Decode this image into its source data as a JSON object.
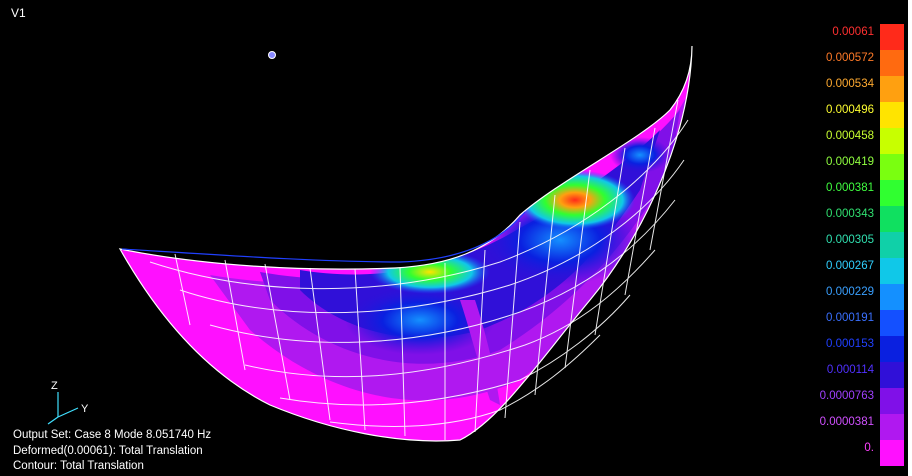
{
  "viewport": {
    "title": "V1"
  },
  "legend": {
    "entries": [
      {
        "label": "0.00061",
        "color": "#ff2a1a",
        "label_color": "#ff3030"
      },
      {
        "label": "0.000572",
        "color": "#ff6a10",
        "label_color": "#ff7a28"
      },
      {
        "label": "0.000534",
        "color": "#ffa010",
        "label_color": "#ffaa30"
      },
      {
        "label": "0.000496",
        "color": "#ffe400",
        "label_color": "#ffff30"
      },
      {
        "label": "0.000458",
        "color": "#c8ff00",
        "label_color": "#c8ff30"
      },
      {
        "label": "0.000419",
        "color": "#7aff10",
        "label_color": "#90ff40"
      },
      {
        "label": "0.000381",
        "color": "#30ff30",
        "label_color": "#40ff40"
      },
      {
        "label": "0.000343",
        "color": "#10e060",
        "label_color": "#30e070"
      },
      {
        "label": "0.000305",
        "color": "#10d0a8",
        "label_color": "#30e0b0"
      },
      {
        "label": "0.000267",
        "color": "#10c8e8",
        "label_color": "#30d0ff"
      },
      {
        "label": "0.000229",
        "color": "#1490ff",
        "label_color": "#3aa0ff"
      },
      {
        "label": "0.000191",
        "color": "#1450ff",
        "label_color": "#3a70ff"
      },
      {
        "label": "0.000153",
        "color": "#0a20e0",
        "label_color": "#2040ff"
      },
      {
        "label": "0.000114",
        "color": "#3010d8",
        "label_color": "#5030ff"
      },
      {
        "label": "0.0000763",
        "color": "#8010e8",
        "label_color": "#a040ff"
      },
      {
        "label": "0.0000381",
        "color": "#b018f0",
        "label_color": "#d050ff"
      },
      {
        "label": "0.",
        "color": "#ff10ff",
        "label_color": "#ff40ff"
      }
    ]
  },
  "status": {
    "output_set": "Output Set: Case 8 Mode 8.051740 Hz",
    "deformed": "Deformed(0.00061): Total Translation",
    "contour": "Contour: Total Translation"
  },
  "triad": {
    "z_label": "Z",
    "y_label": "Y"
  }
}
